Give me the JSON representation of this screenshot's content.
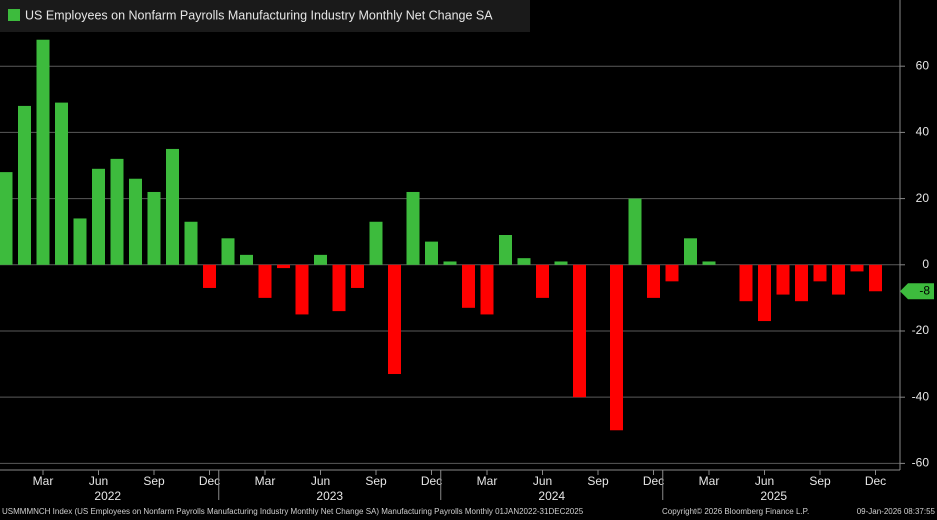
{
  "chart_data": {
    "type": "bar",
    "title": "US Employees on Nonfarm Payrolls Manufacturing Industry Monthly Net Change SA",
    "categories": [
      null,
      null,
      "Mar",
      null,
      null,
      "Jun",
      null,
      null,
      "Sep",
      null,
      null,
      "Dec",
      null,
      null,
      "Mar",
      null,
      null,
      "Jun",
      null,
      null,
      "Sep",
      null,
      null,
      "Dec",
      null,
      null,
      "Mar",
      null,
      null,
      "Jun",
      null,
      null,
      "Sep",
      null,
      null,
      "Dec",
      null,
      null,
      "Mar",
      null,
      null,
      "Jun",
      null,
      null,
      "Sep",
      null,
      null,
      "Dec"
    ],
    "years": [
      "2022",
      "2023",
      "2024",
      "2025"
    ],
    "values": [
      28,
      48,
      68,
      49,
      14,
      29,
      32,
      26,
      22,
      35,
      13,
      -7,
      8,
      3,
      -10,
      -1,
      -15,
      3,
      -14,
      -7,
      13,
      -33,
      22,
      7,
      1,
      -13,
      -15,
      9,
      2,
      -10,
      1,
      -40,
      0,
      -50,
      20,
      -10,
      -5,
      8,
      1,
      0,
      -11,
      -17,
      -9,
      -11,
      -5,
      -9,
      -2,
      -8
    ],
    "positive_color": "#3dbb3d",
    "negative_color": "#ff0000",
    "ylim": [
      -62,
      80
    ],
    "yticks": [
      -60,
      -40,
      -20,
      0,
      20,
      40,
      60
    ],
    "grid": true,
    "source": "USMMMNCH Index (US Employees on Nonfarm Payrolls Manufacturing Industry Monthly Net Change SA) Manufacturing Payrolls Monthly 01JAN2022-31DEC2025",
    "copyright": "Copyright© 2026 Bloomberg Finance L.P.",
    "timestamp": "09-Jan-2026 08:37:55"
  }
}
